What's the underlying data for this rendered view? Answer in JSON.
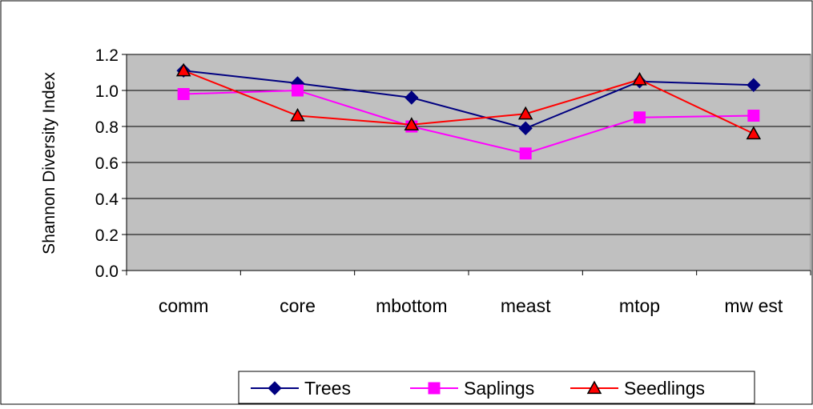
{
  "chart_data": {
    "type": "line",
    "categories": [
      "comm",
      "core",
      "mbottom",
      "meast",
      "mtop",
      "mw est"
    ],
    "ylabel": "Shannon Diversity Index",
    "xlabel": "",
    "title": "",
    "ylim": [
      0,
      1.2
    ],
    "yticks": [
      "0.0",
      "0.2",
      "0.4",
      "0.6",
      "0.8",
      "1.0",
      "1.2"
    ],
    "grid": true,
    "legend_position": "bottom",
    "plot_background": "#c0c0c0",
    "series": [
      {
        "name": "Trees",
        "values": [
          1.11,
          1.04,
          0.96,
          0.79,
          1.05,
          1.03
        ],
        "color": "#000080",
        "marker": "diamond"
      },
      {
        "name": "Saplings",
        "values": [
          0.98,
          1.0,
          0.8,
          0.65,
          0.85,
          0.86
        ],
        "color": "#ff00ff",
        "marker": "square"
      },
      {
        "name": "Seedlings",
        "values": [
          1.11,
          0.86,
          0.81,
          0.87,
          1.06,
          0.76
        ],
        "color": "#ff0000",
        "marker": "triangle"
      }
    ]
  }
}
